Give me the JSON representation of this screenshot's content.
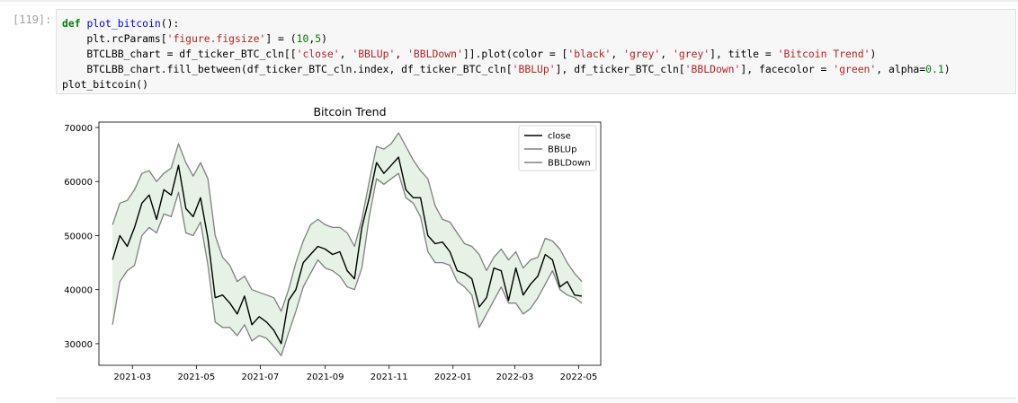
{
  "cell": {
    "prompt": "[119]:",
    "code_lines": [
      [
        {
          "t": "def",
          "c": "kw"
        },
        {
          "t": " "
        },
        {
          "t": "plot_bitcoin",
          "c": "fn"
        },
        {
          "t": "():"
        }
      ],
      [
        {
          "t": "    plt."
        },
        {
          "t": "rcParams",
          "c": "attr"
        },
        {
          "t": "["
        },
        {
          "t": "'figure.figsize'",
          "c": "str"
        },
        {
          "t": "] = ("
        },
        {
          "t": "10",
          "c": "num"
        },
        {
          "t": ","
        },
        {
          "t": "5",
          "c": "num"
        },
        {
          "t": ")"
        }
      ],
      [
        {
          "t": "    BTCLBB_chart = df_ticker_BTC_cln[["
        },
        {
          "t": "'close'",
          "c": "str"
        },
        {
          "t": ", "
        },
        {
          "t": "'BBLUp'",
          "c": "str"
        },
        {
          "t": ", "
        },
        {
          "t": "'BBLDown'",
          "c": "str"
        },
        {
          "t": "]].plot(color = ["
        },
        {
          "t": "'black'",
          "c": "str"
        },
        {
          "t": ", "
        },
        {
          "t": "'grey'",
          "c": "str"
        },
        {
          "t": ", "
        },
        {
          "t": "'grey'",
          "c": "str"
        },
        {
          "t": "], title = "
        },
        {
          "t": "'Bitcoin Trend'",
          "c": "str"
        },
        {
          "t": ")"
        }
      ],
      [
        {
          "t": "    BTCLBB_chart.fill_between(df_ticker_BTC_cln.index, df_ticker_BTC_cln["
        },
        {
          "t": "'BBLUp'",
          "c": "str"
        },
        {
          "t": "], df_ticker_BTC_cln["
        },
        {
          "t": "'BBLDown'",
          "c": "str"
        },
        {
          "t": "], facecolor = "
        },
        {
          "t": "'green'",
          "c": "str"
        },
        {
          "t": ", alpha="
        },
        {
          "t": "0.1",
          "c": "num"
        },
        {
          "t": ")"
        }
      ],
      [
        {
          "t": "plot_bitcoin()"
        }
      ]
    ]
  },
  "chart_data": {
    "type": "line",
    "title": "Bitcoin Trend",
    "xlabel": "",
    "ylabel": "",
    "ylim": [
      26000,
      71000
    ],
    "xlim": [
      "2021-01-28",
      "2022-05-22"
    ],
    "x_ticks": [
      "2021-03",
      "2021-05",
      "2021-07",
      "2021-09",
      "2021-11",
      "2022-01",
      "2022-03",
      "2022-05"
    ],
    "y_ticks": [
      30000,
      40000,
      50000,
      60000,
      70000
    ],
    "legend": {
      "position": "top-right",
      "entries": [
        "close",
        "BBLUp",
        "BBLDown"
      ]
    },
    "grid": false,
    "fill": {
      "between": [
        "BBLUp",
        "BBLDown"
      ],
      "color": "#008000",
      "alpha": 0.1
    },
    "series": [
      {
        "name": "close",
        "color": "#000000",
        "x": [
          "2021-02-10",
          "2021-02-17",
          "2021-02-24",
          "2021-03-03",
          "2021-03-10",
          "2021-03-17",
          "2021-03-24",
          "2021-03-31",
          "2021-04-07",
          "2021-04-14",
          "2021-04-21",
          "2021-04-28",
          "2021-05-05",
          "2021-05-12",
          "2021-05-19",
          "2021-05-26",
          "2021-06-02",
          "2021-06-09",
          "2021-06-16",
          "2021-06-23",
          "2021-06-30",
          "2021-07-07",
          "2021-07-14",
          "2021-07-21",
          "2021-07-28",
          "2021-08-04",
          "2021-08-11",
          "2021-08-18",
          "2021-08-25",
          "2021-09-01",
          "2021-09-08",
          "2021-09-15",
          "2021-09-22",
          "2021-09-29",
          "2021-10-06",
          "2021-10-13",
          "2021-10-20",
          "2021-10-27",
          "2021-11-03",
          "2021-11-10",
          "2021-11-17",
          "2021-11-24",
          "2021-12-01",
          "2021-12-08",
          "2021-12-15",
          "2021-12-22",
          "2021-12-29",
          "2022-01-05",
          "2022-01-12",
          "2022-01-19",
          "2022-01-26",
          "2022-02-02",
          "2022-02-09",
          "2022-02-16",
          "2022-02-23",
          "2022-03-02",
          "2022-03-09",
          "2022-03-16",
          "2022-03-23",
          "2022-03-30",
          "2022-04-06",
          "2022-04-13",
          "2022-04-20",
          "2022-04-27",
          "2022-05-04"
        ],
        "values": [
          45500,
          50000,
          48000,
          51500,
          56000,
          57500,
          53000,
          58500,
          57500,
          63000,
          55000,
          53500,
          57000,
          49500,
          38500,
          39000,
          37500,
          35500,
          38800,
          33500,
          35000,
          34000,
          32500,
          30000,
          38000,
          40000,
          45000,
          46500,
          48000,
          47500,
          46500,
          47000,
          43500,
          42000,
          51500,
          57000,
          63500,
          61500,
          63000,
          64500,
          58500,
          57000,
          57000,
          50000,
          48500,
          48800,
          47000,
          43500,
          43000,
          42000,
          36800,
          38500,
          44000,
          43500,
          38000,
          44000,
          39000,
          41000,
          42500,
          46500,
          45500,
          40500,
          41500,
          39000,
          38800
        ]
      },
      {
        "name": "BBLUp",
        "color": "#808080",
        "x": [
          "2021-02-10",
          "2021-02-17",
          "2021-02-24",
          "2021-03-03",
          "2021-03-10",
          "2021-03-17",
          "2021-03-24",
          "2021-03-31",
          "2021-04-07",
          "2021-04-14",
          "2021-04-21",
          "2021-04-28",
          "2021-05-05",
          "2021-05-12",
          "2021-05-19",
          "2021-05-26",
          "2021-06-02",
          "2021-06-09",
          "2021-06-16",
          "2021-06-23",
          "2021-06-30",
          "2021-07-07",
          "2021-07-14",
          "2021-07-21",
          "2021-07-28",
          "2021-08-04",
          "2021-08-11",
          "2021-08-18",
          "2021-08-25",
          "2021-09-01",
          "2021-09-08",
          "2021-09-15",
          "2021-09-22",
          "2021-09-29",
          "2021-10-06",
          "2021-10-13",
          "2021-10-20",
          "2021-10-27",
          "2021-11-03",
          "2021-11-10",
          "2021-11-17",
          "2021-11-24",
          "2021-12-01",
          "2021-12-08",
          "2021-12-15",
          "2021-12-22",
          "2021-12-29",
          "2022-01-05",
          "2022-01-12",
          "2022-01-19",
          "2022-01-26",
          "2022-02-02",
          "2022-02-09",
          "2022-02-16",
          "2022-02-23",
          "2022-03-02",
          "2022-03-09",
          "2022-03-16",
          "2022-03-23",
          "2022-03-30",
          "2022-04-06",
          "2022-04-13",
          "2022-04-20",
          "2022-04-27",
          "2022-05-04"
        ],
        "values": [
          52000,
          56000,
          56500,
          58500,
          61500,
          62000,
          60000,
          61500,
          62500,
          67000,
          63500,
          61000,
          63500,
          60500,
          50000,
          46000,
          44500,
          41500,
          42500,
          40000,
          39500,
          39000,
          38500,
          36000,
          40000,
          45000,
          49000,
          52000,
          53000,
          52000,
          51500,
          51500,
          50500,
          48000,
          53000,
          60000,
          66500,
          66000,
          67000,
          69000,
          66500,
          64000,
          62000,
          60500,
          55500,
          53000,
          52500,
          50500,
          48500,
          48000,
          46500,
          43500,
          46000,
          47500,
          45500,
          47000,
          44000,
          45500,
          46000,
          49500,
          49000,
          47500,
          45000,
          43000,
          41500
        ]
      },
      {
        "name": "BBLDown",
        "color": "#808080",
        "x": [
          "2021-02-10",
          "2021-02-17",
          "2021-02-24",
          "2021-03-03",
          "2021-03-10",
          "2021-03-17",
          "2021-03-24",
          "2021-03-31",
          "2021-04-07",
          "2021-04-14",
          "2021-04-21",
          "2021-04-28",
          "2021-05-05",
          "2021-05-12",
          "2021-05-19",
          "2021-05-26",
          "2021-06-02",
          "2021-06-09",
          "2021-06-16",
          "2021-06-23",
          "2021-06-30",
          "2021-07-07",
          "2021-07-14",
          "2021-07-21",
          "2021-07-28",
          "2021-08-04",
          "2021-08-11",
          "2021-08-18",
          "2021-08-25",
          "2021-09-01",
          "2021-09-08",
          "2021-09-15",
          "2021-09-22",
          "2021-09-29",
          "2021-10-06",
          "2021-10-13",
          "2021-10-20",
          "2021-10-27",
          "2021-11-03",
          "2021-11-10",
          "2021-11-17",
          "2021-11-24",
          "2021-12-01",
          "2021-12-08",
          "2021-12-15",
          "2021-12-22",
          "2021-12-29",
          "2022-01-05",
          "2022-01-12",
          "2022-01-19",
          "2022-01-26",
          "2022-02-02",
          "2022-02-09",
          "2022-02-16",
          "2022-02-23",
          "2022-03-02",
          "2022-03-09",
          "2022-03-16",
          "2022-03-23",
          "2022-03-30",
          "2022-04-06",
          "2022-04-13",
          "2022-04-20",
          "2022-04-27",
          "2022-05-04"
        ],
        "values": [
          33500,
          41500,
          43500,
          44500,
          50000,
          51500,
          50500,
          54000,
          53500,
          58000,
          50500,
          50000,
          52500,
          44500,
          34000,
          33000,
          33000,
          31500,
          33500,
          30500,
          31500,
          31000,
          29500,
          27800,
          32000,
          36000,
          40500,
          43000,
          45500,
          44000,
          43500,
          42500,
          40500,
          40000,
          44000,
          53500,
          60500,
          59500,
          60500,
          61500,
          57000,
          56000,
          53500,
          47000,
          45000,
          45000,
          44500,
          41500,
          40500,
          39000,
          33000,
          35500,
          38000,
          40500,
          37500,
          37500,
          35500,
          36500,
          38500,
          41000,
          43500,
          40000,
          39000,
          38500,
          37500
        ]
      }
    ]
  }
}
